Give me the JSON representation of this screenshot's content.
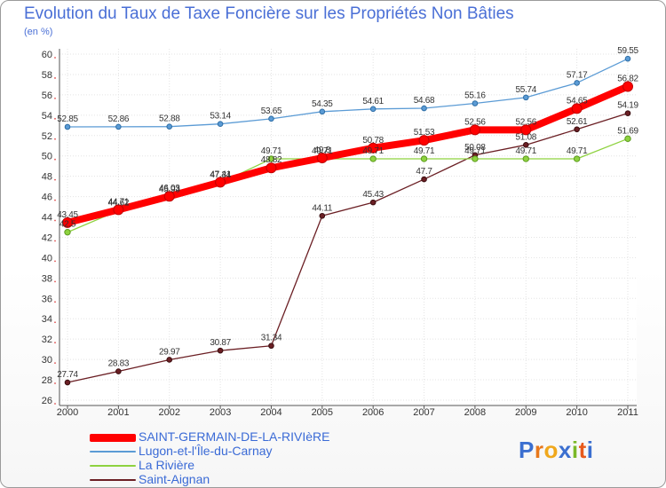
{
  "title": "Evolution du Taux de Taxe Foncière sur les Propriétés Non Bâties",
  "unit": "(en %)",
  "logo": {
    "text": "Proxiti",
    "letters": [
      "P",
      "r",
      "o",
      "x",
      "i",
      "t",
      "i"
    ],
    "colors": [
      "#3b6fd0",
      "#e8781c",
      "#f0a81c",
      "#3b6fd0",
      "#7ab828",
      "#e85a1c",
      "#3b6fd0"
    ]
  },
  "chart_data": {
    "type": "line",
    "title": "Evolution du Taux de Taxe Foncière sur les Propriétés Non Bâties",
    "ylabel": "(en %)",
    "xlabel": "",
    "x": [
      "2000",
      "2001",
      "2002",
      "2003",
      "2004",
      "2005",
      "2006",
      "2007",
      "2008",
      "2009",
      "2010",
      "2011"
    ],
    "ylim": [
      26,
      60
    ],
    "yticks": [
      26,
      28,
      30,
      32,
      34,
      36,
      38,
      40,
      42,
      44,
      46,
      48,
      50,
      52,
      54,
      56,
      58,
      60
    ],
    "grid": true,
    "legend": "bottom-left",
    "series": [
      {
        "name": "Saint-Aignan",
        "color": "#6b1f24",
        "values": [
          27.74,
          28.83,
          29.97,
          30.87,
          31.34,
          44.11,
          45.43,
          47.7,
          50.08,
          51.08,
          52.61,
          54.19
        ],
        "labels": [
          "27.74",
          "28.83",
          "29.97",
          "30.87",
          "31.34",
          "44.11",
          "45.43",
          "47.7",
          "50.08",
          "51.08",
          "52.61",
          "54.19"
        ]
      },
      {
        "name": "La Rivière",
        "color": "#8ed23f",
        "values": [
          42.5,
          44.62,
          45.93,
          47.34,
          49.71,
          49.71,
          49.71,
          49.71,
          49.71,
          49.71,
          49.71,
          51.69
        ],
        "labels": [
          "42.5",
          "44.62",
          "45.93",
          "47.34",
          "49.71",
          "49.71",
          "49.71",
          "49.71",
          "49.71",
          "49.71",
          "49.71",
          "51.69"
        ]
      },
      {
        "name": "Lugon-et-l'Île-du-Carnay",
        "color": "#5b9bd5",
        "values": [
          52.85,
          52.86,
          52.88,
          53.14,
          53.65,
          54.35,
          54.61,
          54.68,
          55.16,
          55.74,
          57.17,
          59.55
        ],
        "labels": [
          "52.85",
          "52.86",
          "52.88",
          "53.14",
          "53.65",
          "54.35",
          "54.61",
          "54.68",
          "55.16",
          "55.74",
          "57.17",
          "59.55"
        ]
      },
      {
        "name": "SAINT-GERMAIN-DE-LA-RIVIèRE",
        "color": "#ff0000",
        "values": [
          43.45,
          44.71,
          46.03,
          47.41,
          48.82,
          49.8,
          50.78,
          51.53,
          52.56,
          52.56,
          54.65,
          56.82
        ],
        "labels": [
          "43.45",
          "44.71",
          "46.03",
          "47.41",
          "48.82",
          "49.8",
          "50.78",
          "51.53",
          "52.56",
          "52.56",
          "54.65",
          "56.82"
        ]
      }
    ],
    "legend_entries": [
      {
        "name": "SAINT-GERMAIN-DE-LA-RIVIèRE",
        "color": "#ff0000"
      },
      {
        "name": "Lugon-et-l'Île-du-Carnay",
        "color": "#5b9bd5"
      },
      {
        "name": "La Rivière",
        "color": "#8ed23f"
      },
      {
        "name": "Saint-Aignan",
        "color": "#6b1f24"
      }
    ]
  }
}
